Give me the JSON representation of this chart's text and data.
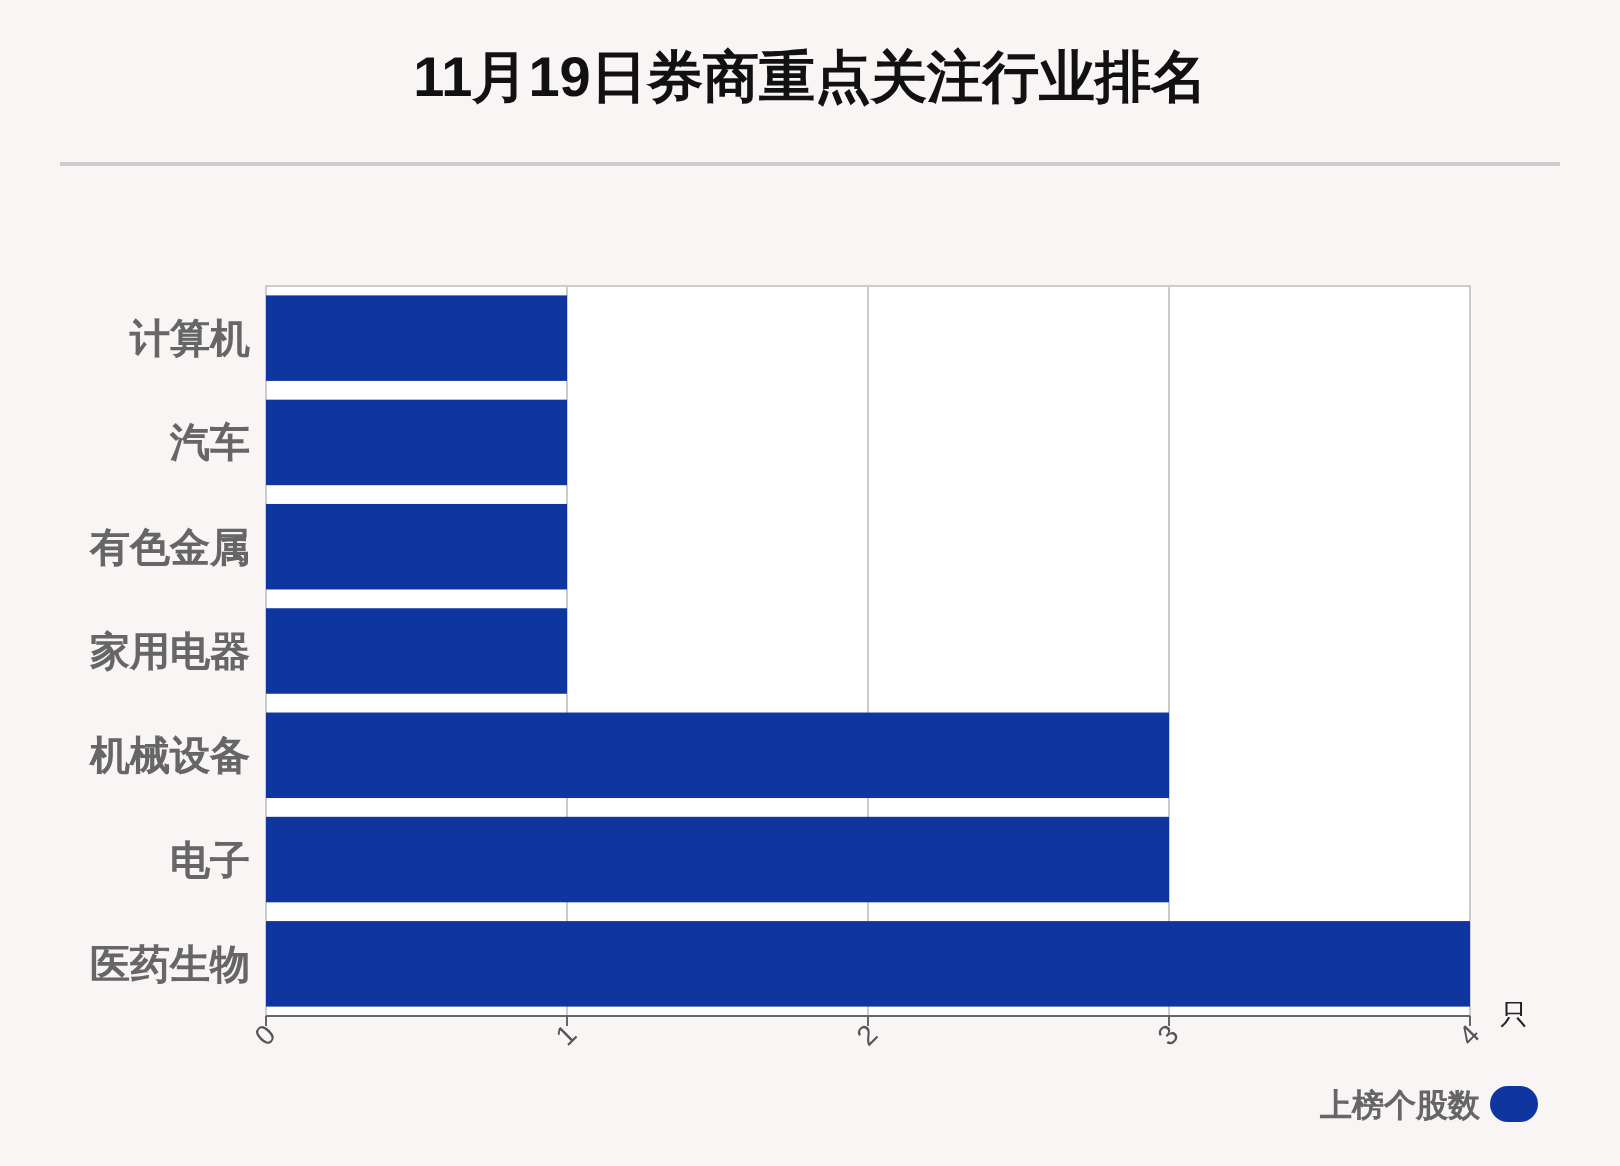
{
  "chart_data": {
    "type": "bar",
    "title": "11月19日券商重点关注行业排名",
    "orientation": "horizontal",
    "categories": [
      "计算机",
      "汽车",
      "有色金属",
      "家用电器",
      "机械设备",
      "电子",
      "医药生物"
    ],
    "series": [
      {
        "name": "上榜个股数",
        "color": "#0e369e",
        "values": [
          1,
          1,
          1,
          1,
          3,
          3,
          4
        ]
      }
    ],
    "xlim": [
      0,
      4
    ],
    "xticks": [
      0,
      1,
      2,
      3,
      4
    ],
    "xlabel": "只",
    "grid": "x",
    "legend": "bottom right"
  }
}
